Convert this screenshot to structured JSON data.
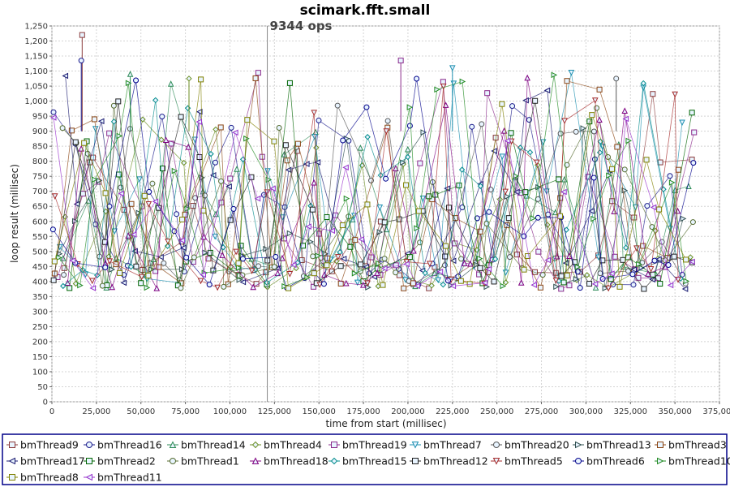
{
  "chart_data": {
    "type": "scatter",
    "title": "scimark.fft.small",
    "xlabel": "time from start (millisec)",
    "ylabel": "loop result (millisec)",
    "xlim": [
      0,
      375000
    ],
    "ylim": [
      0,
      1250
    ],
    "x_ticks": [
      0,
      25000,
      50000,
      75000,
      100000,
      125000,
      150000,
      175000,
      200000,
      225000,
      250000,
      275000,
      300000,
      325000,
      350000,
      375000
    ],
    "x_tick_labels": [
      "0",
      "25,000",
      "50,000",
      "75,000",
      "100,000",
      "125,000",
      "150,000",
      "175,000",
      "200,000",
      "225,000",
      "250,000",
      "275,000",
      "300,000",
      "325,000",
      "350,000",
      "375,000"
    ],
    "y_ticks": [
      0,
      50,
      100,
      150,
      200,
      250,
      300,
      350,
      400,
      450,
      500,
      550,
      600,
      650,
      700,
      750,
      800,
      850,
      900,
      950,
      1000,
      1050,
      1100,
      1150,
      1200,
      1250
    ],
    "y_tick_labels": [
      "0",
      "50",
      "100",
      "150",
      "200",
      "250",
      "300",
      "350",
      "400",
      "450",
      "500",
      "550",
      "600",
      "650",
      "700",
      "750",
      "800",
      "850",
      "900",
      "950",
      "1,000",
      "1,050",
      "1,100",
      "1,150",
      "1,200",
      "1,250"
    ],
    "grid": true,
    "x_range_of_data": [
      0,
      361000
    ],
    "y_range_of_data": [
      350,
      1220
    ],
    "marker_line": {
      "x": 121000,
      "label": "9344 ops"
    },
    "legend_position": "bottom",
    "series": [
      {
        "name": "bmThread9",
        "color": "#8b3a3a",
        "marker": "square"
      },
      {
        "name": "bmThread16",
        "color": "#1a1a8b",
        "marker": "circle"
      },
      {
        "name": "bmThread14",
        "color": "#2e8b57",
        "marker": "triangle-up"
      },
      {
        "name": "bmThread4",
        "color": "#6b8e23",
        "marker": "diamond"
      },
      {
        "name": "bmThread19",
        "color": "#8b2a8b",
        "marker": "square"
      },
      {
        "name": "bmThread7",
        "color": "#1e90b0",
        "marker": "triangle-down"
      },
      {
        "name": "bmThread20",
        "color": "#555555",
        "marker": "circle"
      },
      {
        "name": "bmThread13",
        "color": "#2f4f4f",
        "marker": "triangle-right"
      },
      {
        "name": "bmThread3",
        "color": "#8b4513",
        "marker": "square"
      },
      {
        "name": "bmThread17",
        "color": "#191970",
        "marker": "triangle-left"
      },
      {
        "name": "bmThread2",
        "color": "#006400",
        "marker": "square"
      },
      {
        "name": "bmThread1",
        "color": "#556b2f",
        "marker": "circle"
      },
      {
        "name": "bmThread18",
        "color": "#800080",
        "marker": "triangle-up"
      },
      {
        "name": "bmThread15",
        "color": "#008b8b",
        "marker": "diamond"
      },
      {
        "name": "bmThread12",
        "color": "#222222",
        "marker": "square"
      },
      {
        "name": "bmThread5",
        "color": "#a52a2a",
        "marker": "triangle-down"
      },
      {
        "name": "bmThread6",
        "color": "#00008b",
        "marker": "circle"
      },
      {
        "name": "bmThread10",
        "color": "#228b22",
        "marker": "triangle-right"
      },
      {
        "name": "bmThread8",
        "color": "#808000",
        "marker": "square"
      },
      {
        "name": "bmThread11",
        "color": "#9932cc",
        "marker": "triangle-left"
      }
    ]
  }
}
